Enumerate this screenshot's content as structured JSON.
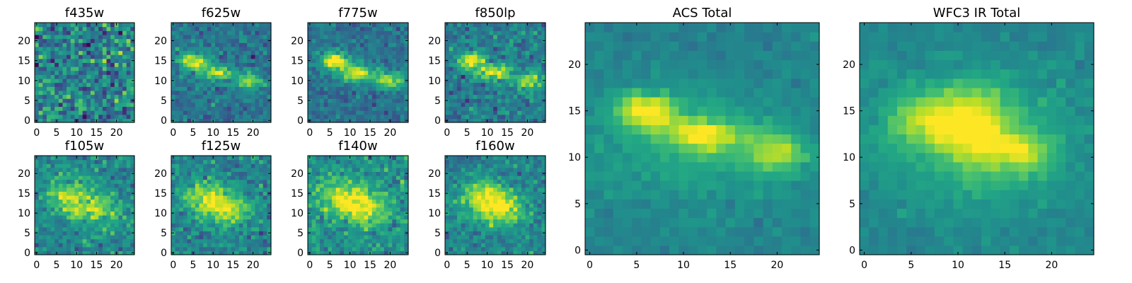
{
  "chart_data": {
    "type": "heatmap",
    "colormap": "viridis",
    "grid": false,
    "panels": [
      {
        "title": "f435w",
        "xlim": [
          0,
          24
        ],
        "ylim": [
          0,
          24
        ],
        "xticks": [
          "0",
          "5",
          "10",
          "15",
          "20"
        ],
        "yticks": [
          "0",
          "5",
          "10",
          "15",
          "20"
        ],
        "blobs": [],
        "contrast": 0.6,
        "noise": 0.9,
        "base": 0.45
      },
      {
        "title": "f625w",
        "xlim": [
          0,
          24
        ],
        "ylim": [
          0,
          24
        ],
        "xticks": [
          "0",
          "5",
          "10",
          "15",
          "20"
        ],
        "yticks": [
          "0",
          "5",
          "10",
          "15",
          "20"
        ],
        "blobs": [
          {
            "cx": 5,
            "cy": 15,
            "sx": 2.5,
            "sy": 1.5,
            "a": 0.6
          },
          {
            "cx": 11,
            "cy": 12,
            "sx": 3,
            "sy": 1.5,
            "a": 0.5
          },
          {
            "cx": 19,
            "cy": 10,
            "sx": 2.5,
            "sy": 1.5,
            "a": 0.45
          }
        ],
        "contrast": 1.0,
        "noise": 0.45,
        "base": 0.38
      },
      {
        "title": "f775w",
        "xlim": [
          0,
          24
        ],
        "ylim": [
          0,
          24
        ],
        "xticks": [
          "0",
          "5",
          "10",
          "15",
          "20"
        ],
        "yticks": [
          "0",
          "5",
          "10",
          "15",
          "20"
        ],
        "blobs": [
          {
            "cx": 6,
            "cy": 15,
            "sx": 2.5,
            "sy": 1.5,
            "a": 0.65
          },
          {
            "cx": 12,
            "cy": 12,
            "sx": 3,
            "sy": 1.5,
            "a": 0.55
          },
          {
            "cx": 20,
            "cy": 10,
            "sx": 2.5,
            "sy": 1.5,
            "a": 0.45
          }
        ],
        "contrast": 1.0,
        "noise": 0.4,
        "base": 0.38
      },
      {
        "title": "f850lp",
        "xlim": [
          0,
          24
        ],
        "ylim": [
          0,
          24
        ],
        "xticks": [
          "0",
          "5",
          "10",
          "15",
          "20"
        ],
        "yticks": [
          "0",
          "5",
          "10",
          "15",
          "20"
        ],
        "blobs": [
          {
            "cx": 6,
            "cy": 15,
            "sx": 2.5,
            "sy": 1.5,
            "a": 0.55
          },
          {
            "cx": 12,
            "cy": 12,
            "sx": 3,
            "sy": 1.5,
            "a": 0.5
          },
          {
            "cx": 20,
            "cy": 10,
            "sx": 2.5,
            "sy": 1.5,
            "a": 0.45
          }
        ],
        "contrast": 1.0,
        "noise": 0.5,
        "base": 0.42
      },
      {
        "title": "f105w",
        "xlim": [
          0,
          24
        ],
        "ylim": [
          0,
          24
        ],
        "xticks": [
          "0",
          "5",
          "10",
          "15",
          "20"
        ],
        "yticks": [
          "0",
          "5",
          "10",
          "15",
          "20"
        ],
        "blobs": [
          {
            "cx": 8,
            "cy": 14,
            "sx": 4,
            "sy": 3,
            "a": 0.4
          },
          {
            "cx": 15,
            "cy": 11,
            "sx": 4,
            "sy": 3,
            "a": 0.35
          }
        ],
        "contrast": 1.0,
        "noise": 0.5,
        "base": 0.45
      },
      {
        "title": "f125w",
        "xlim": [
          0,
          24
        ],
        "ylim": [
          0,
          24
        ],
        "xticks": [
          "0",
          "5",
          "10",
          "15",
          "20"
        ],
        "yticks": [
          "0",
          "5",
          "10",
          "15",
          "20"
        ],
        "blobs": [
          {
            "cx": 8,
            "cy": 14,
            "sx": 4,
            "sy": 3,
            "a": 0.4
          },
          {
            "cx": 14,
            "cy": 11,
            "sx": 4,
            "sy": 3,
            "a": 0.4
          }
        ],
        "contrast": 1.0,
        "noise": 0.5,
        "base": 0.45
      },
      {
        "title": "f140w",
        "xlim": [
          0,
          24
        ],
        "ylim": [
          0,
          24
        ],
        "xticks": [
          "0",
          "5",
          "10",
          "15",
          "20"
        ],
        "yticks": [
          "0",
          "5",
          "10",
          "15",
          "20"
        ],
        "blobs": [
          {
            "cx": 8,
            "cy": 14,
            "sx": 4,
            "sy": 3,
            "a": 0.4
          },
          {
            "cx": 14,
            "cy": 11,
            "sx": 4,
            "sy": 3,
            "a": 0.4
          }
        ],
        "contrast": 1.0,
        "noise": 0.5,
        "base": 0.5
      },
      {
        "title": "f160w",
        "xlim": [
          0,
          24
        ],
        "ylim": [
          0,
          24
        ],
        "xticks": [
          "0",
          "5",
          "10",
          "15",
          "20"
        ],
        "yticks": [
          "0",
          "5",
          "10",
          "15",
          "20"
        ],
        "blobs": [
          {
            "cx": 9,
            "cy": 14,
            "sx": 4,
            "sy": 3,
            "a": 0.45
          },
          {
            "cx": 14,
            "cy": 11,
            "sx": 4,
            "sy": 3,
            "a": 0.4
          }
        ],
        "contrast": 1.0,
        "noise": 0.45,
        "base": 0.45
      },
      {
        "title": "ACS Total",
        "xlim": [
          0,
          24
        ],
        "ylim": [
          0,
          24
        ],
        "xticks": [
          "0",
          "5",
          "10",
          "15",
          "20"
        ],
        "yticks": [
          "0",
          "5",
          "10",
          "15",
          "20"
        ],
        "blobs": [
          {
            "cx": 6,
            "cy": 15,
            "sx": 2.2,
            "sy": 1.3,
            "a": 0.55
          },
          {
            "cx": 12,
            "cy": 12.5,
            "sx": 2.8,
            "sy": 1.3,
            "a": 0.45
          },
          {
            "cx": 20,
            "cy": 10.5,
            "sx": 2.2,
            "sy": 1.5,
            "a": 0.35
          },
          {
            "cx": 12,
            "cy": 11,
            "sx": 9,
            "sy": 4,
            "a": 0.15
          }
        ],
        "contrast": 1.0,
        "noise": 0.18,
        "base": 0.45
      },
      {
        "title": "WFC3 IR Total",
        "xlim": [
          0,
          24
        ],
        "ylim": [
          0,
          24
        ],
        "xticks": [
          "0",
          "5",
          "10",
          "15",
          "20"
        ],
        "yticks": [
          "0",
          "5",
          "10",
          "15",
          "20"
        ],
        "blobs": [
          {
            "cx": 7,
            "cy": 14,
            "sx": 3,
            "sy": 2,
            "a": 0.35
          },
          {
            "cx": 12,
            "cy": 13,
            "sx": 2.5,
            "sy": 3,
            "a": 0.4
          },
          {
            "cx": 17,
            "cy": 10.5,
            "sx": 2,
            "sy": 1.5,
            "a": 0.3
          },
          {
            "cx": 12,
            "cy": 12,
            "sx": 8,
            "sy": 5,
            "a": 0.2
          }
        ],
        "contrast": 1.0,
        "noise": 0.18,
        "base": 0.45
      }
    ]
  }
}
